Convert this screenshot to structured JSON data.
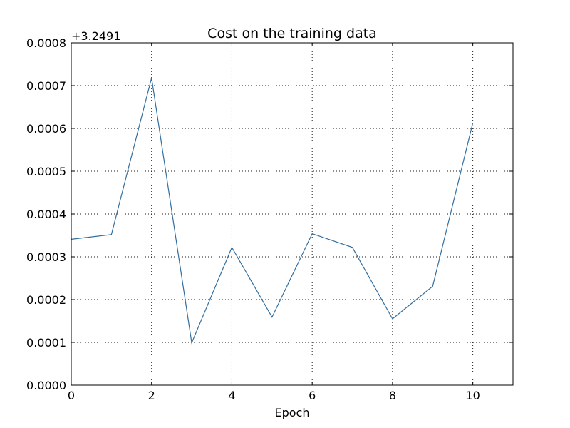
{
  "chart_data": {
    "type": "line",
    "title": "Cost on the training data",
    "xlabel": "Epoch",
    "ylabel": "",
    "offset_label": "+3.2491",
    "xlim": [
      0,
      11
    ],
    "ylim": [
      0.0,
      0.0008
    ],
    "xticks": [
      0,
      2,
      4,
      6,
      8,
      10
    ],
    "xtick_labels": [
      "0",
      "2",
      "4",
      "6",
      "8",
      "10"
    ],
    "yticks": [
      0.0,
      0.0001,
      0.0002,
      0.0003,
      0.0004,
      0.0005,
      0.0006,
      0.0007,
      0.0008
    ],
    "ytick_labels": [
      "0.0000",
      "0.0001",
      "0.0002",
      "0.0003",
      "0.0004",
      "0.0005",
      "0.0006",
      "0.0007",
      "0.0008"
    ],
    "grid": true,
    "series": [
      {
        "color": "#336e9e",
        "x": [
          0,
          1,
          2,
          3,
          4,
          5,
          6,
          7,
          8,
          9,
          10
        ],
        "y": [
          0.000341,
          0.000352,
          0.000718,
          9.9e-05,
          0.000322,
          0.000159,
          0.000354,
          0.000322,
          0.000155,
          0.000231,
          0.000613
        ]
      }
    ]
  }
}
